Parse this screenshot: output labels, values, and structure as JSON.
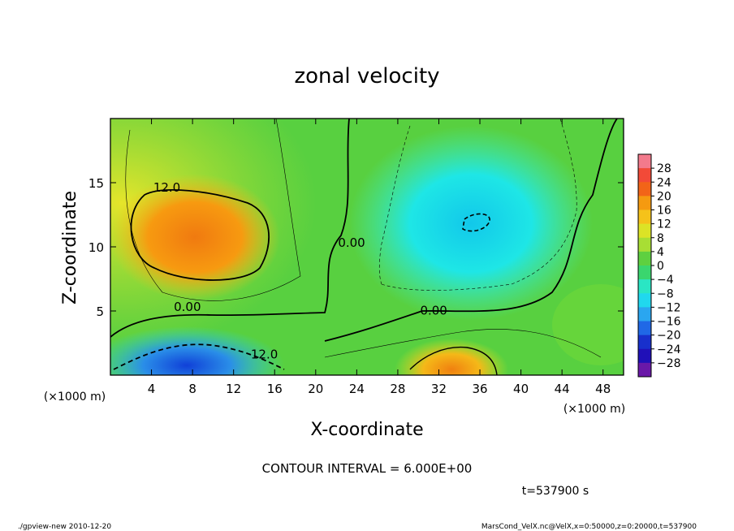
{
  "chart_data": {
    "type": "heatmap",
    "title": "zonal velocity",
    "xlabel": "X-coordinate",
    "ylabel": "Z-coordinate",
    "x_unit": "(×1000 m)",
    "y_unit": "(×1000 m)",
    "x_unit_alt": "(×1000 m)",
    "xlim": [
      0,
      50
    ],
    "ylim": [
      0,
      20
    ],
    "x_ticks": [
      "4",
      "8",
      "12",
      "16",
      "20",
      "24",
      "28",
      "32",
      "36",
      "40",
      "44",
      "48"
    ],
    "y_ticks": [
      "5",
      "10",
      "15"
    ],
    "colorbar_levels": [
      "28",
      "24",
      "20",
      "16",
      "12",
      "8",
      "4",
      "0",
      "−4",
      "−8",
      "−12",
      "−16",
      "−20",
      "−24",
      "−28"
    ],
    "contour_labels": [
      {
        "text": "12.0",
        "x": 5.5,
        "z": 14.3
      },
      {
        "text": "0.00",
        "x": 7.5,
        "z": 5.0
      },
      {
        "text": "0.00",
        "x": 31.5,
        "z": 4.7
      },
      {
        "text": "0.00",
        "x": 23.5,
        "z": 10.0
      },
      {
        "text": "12.0",
        "x": 15.0,
        "z": 1.3
      }
    ],
    "features": [
      {
        "name": "positive-core-upper-left",
        "x": 8,
        "z": 11.5,
        "value": 18
      },
      {
        "name": "negative-core-upper-right",
        "x": 35,
        "z": 12,
        "value": -13
      },
      {
        "name": "negative-core-lower-left",
        "x": 8,
        "z": 1,
        "value": -18
      },
      {
        "name": "positive-core-lower-right",
        "x": 34,
        "z": 1,
        "value": 15
      }
    ]
  },
  "contour_interval": "CONTOUR INTERVAL = 6.000E+00",
  "time_label": "t=537900 s",
  "footer_left": "./gpview-new  2010-12-20",
  "footer_right": "MarsCond_VelX.nc@VelX,x=0:50000,z=0:20000,t=537900"
}
